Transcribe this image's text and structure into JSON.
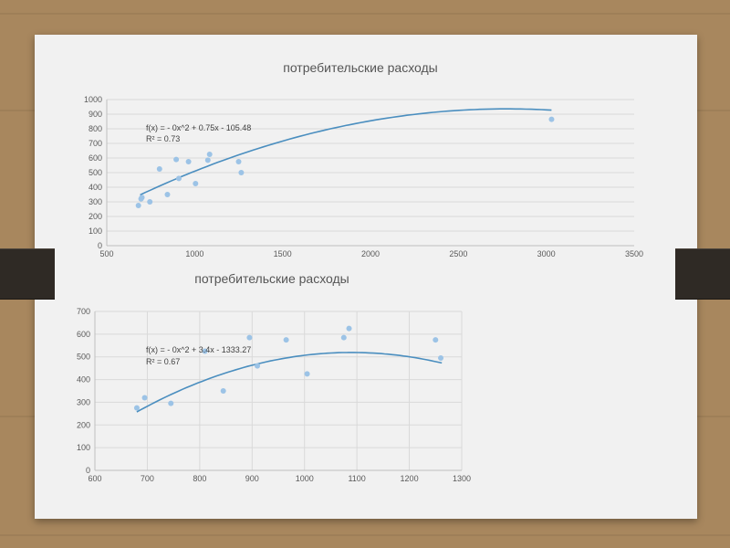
{
  "chart_data": [
    {
      "type": "scatter",
      "title": "потребительские расходы",
      "xlim": [
        500,
        3500
      ],
      "ylim": [
        0,
        1000
      ],
      "x_ticks": [
        500,
        1000,
        1500,
        2000,
        2500,
        3000,
        3500
      ],
      "y_ticks": [
        0,
        100,
        200,
        300,
        400,
        500,
        600,
        700,
        800,
        900,
        1000
      ],
      "grid": "horizontal",
      "points": [
        [
          680,
          275
        ],
        [
          695,
          320
        ],
        [
          700,
          330
        ],
        [
          745,
          300
        ],
        [
          800,
          525
        ],
        [
          845,
          350
        ],
        [
          895,
          590
        ],
        [
          910,
          460
        ],
        [
          965,
          575
        ],
        [
          1005,
          425
        ],
        [
          1075,
          585
        ],
        [
          1085,
          625
        ],
        [
          1250,
          575
        ],
        [
          1265,
          500
        ],
        [
          3030,
          865
        ]
      ],
      "trendline": {
        "type": "polynomial",
        "coefficients": [
          -0.000135,
          0.75,
          -105.48
        ],
        "x_range": [
          690,
          3030
        ]
      },
      "equation": "f(x) =  - 0x^2 + 0.75x - 105.48",
      "r_squared": "R² = 0.73",
      "point_color": "#9cc3e6",
      "line_color": "#4a8ebf"
    },
    {
      "type": "scatter",
      "title": "потребительские расходы",
      "xlim": [
        600,
        1300
      ],
      "ylim": [
        0,
        700
      ],
      "x_ticks": [
        600,
        700,
        800,
        900,
        1000,
        1100,
        1200,
        1300
      ],
      "y_ticks": [
        0,
        100,
        200,
        300,
        400,
        500,
        600,
        700
      ],
      "grid": "both",
      "points": [
        [
          680,
          275
        ],
        [
          695,
          320
        ],
        [
          745,
          295
        ],
        [
          810,
          525
        ],
        [
          845,
          350
        ],
        [
          895,
          585
        ],
        [
          910,
          460
        ],
        [
          965,
          575
        ],
        [
          1005,
          425
        ],
        [
          1075,
          585
        ],
        [
          1085,
          625
        ],
        [
          1250,
          575
        ],
        [
          1260,
          495
        ]
      ],
      "trendline": {
        "type": "polynomial",
        "coefficients": [
          -0.00156,
          3.4,
          -1333.27
        ],
        "x_range": [
          680,
          1262
        ]
      },
      "equation": "f(x) =  - 0x^2 + 3.4x - 1333.27",
      "r_squared": "R² = 0.67",
      "point_color": "#9cc3e6",
      "line_color": "#4a8ebf"
    }
  ]
}
